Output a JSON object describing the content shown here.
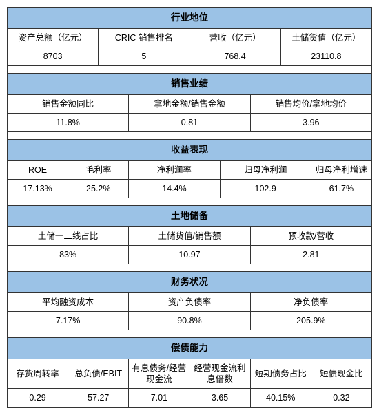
{
  "colors": {
    "header_bg": "#9bc2e6",
    "border": "#333333",
    "bg": "#ffffff",
    "text": "#000000"
  },
  "sec1": {
    "title": "行业地位",
    "h1": "资产总额（亿元）",
    "v1": "8703",
    "h2": "CRIC 销售排名",
    "v2": "5",
    "h3": "营收（亿元）",
    "v3": "768.4",
    "h4": "土储货值（亿元）",
    "v4": "23110.8"
  },
  "sec2": {
    "title": "销售业绩",
    "h1": "销售金额同比",
    "v1": "11.8%",
    "h2": "拿地金额/销售金额",
    "v2": "0.81",
    "h3": "销售均价/拿地均价",
    "v3": "3.96"
  },
  "sec3": {
    "title": "收益表现",
    "h1": "ROE",
    "v1": "17.13%",
    "h2": "毛利率",
    "v2": "25.2%",
    "h3": "净利润率",
    "v3": "14.4%",
    "h4": "归母净利润",
    "v4": "102.9",
    "h5": "归母净利增速",
    "v5": "61.7%"
  },
  "sec4": {
    "title": "土地储备",
    "h1": "土储一二线占比",
    "v1": "83%",
    "h2": "土储货值/销售额",
    "v2": "10.97",
    "h3": "预收款/营收",
    "v3": "2.81"
  },
  "sec5": {
    "title": "财务状况",
    "h1": "平均融资成本",
    "v1": "7.17%",
    "h2": "资产负债率",
    "v2": "90.8%",
    "h3": "净负债率",
    "v3": "205.9%"
  },
  "sec6": {
    "title": "偿债能力",
    "h1": "存货周转率",
    "v1": "0.29",
    "h2": "总负债/EBIT",
    "v2": "57.27",
    "h3": "有息债务/经营现金流",
    "v3": "7.01",
    "h4": "经营现金流利息倍数",
    "v4": "3.65",
    "h5": "短期债务占比",
    "v5": "40.15%",
    "h6": "短债现金比",
    "v6": "0.32"
  }
}
